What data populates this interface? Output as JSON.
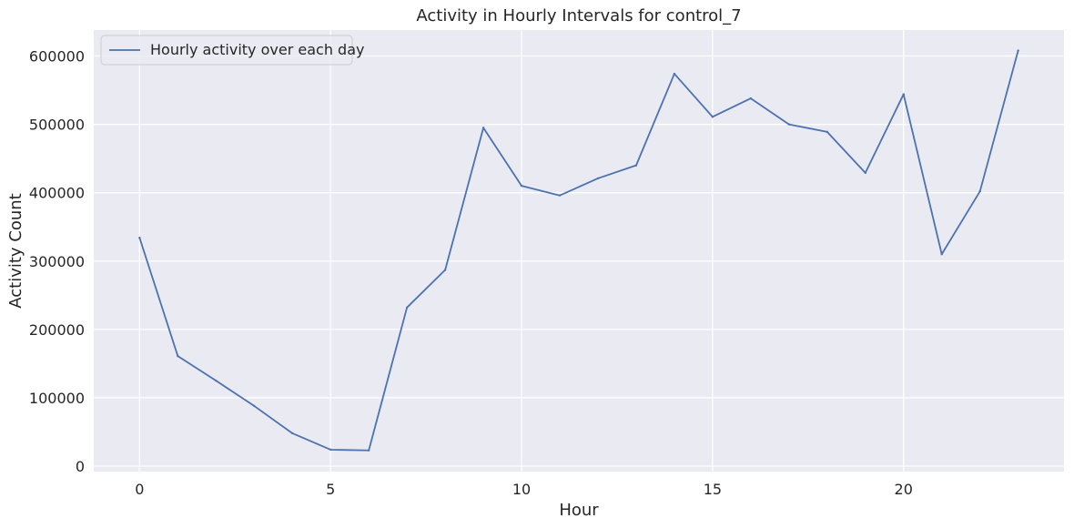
{
  "chart_data": {
    "type": "line",
    "title": "Activity in Hourly Intervals for control_7",
    "xlabel": "Hour",
    "ylabel": "Activity Count",
    "xlim": [
      -1.2,
      24.2
    ],
    "ylim": [
      -8000,
      638000
    ],
    "xticks": [
      0,
      5,
      10,
      15,
      20
    ],
    "yticks": [
      0,
      100000,
      200000,
      300000,
      400000,
      500000,
      600000
    ],
    "grid": true,
    "legend_position": "top-left",
    "series": [
      {
        "name": "Hourly activity over each day",
        "color": "#4c72b0",
        "x": [
          0,
          1,
          2,
          3,
          4,
          5,
          6,
          7,
          8,
          9,
          10,
          11,
          12,
          13,
          14,
          15,
          16,
          17,
          18,
          19,
          20,
          21,
          22,
          23
        ],
        "values": [
          334000,
          161000,
          125000,
          88000,
          48000,
          24000,
          23000,
          232000,
          287000,
          495000,
          410000,
          396000,
          421000,
          440000,
          574000,
          511000,
          538000,
          500000,
          489000,
          429000,
          544000,
          310000,
          402000,
          608000
        ]
      }
    ]
  },
  "colors": {
    "plot_background": "#eaeaf2",
    "grid": "#ffffff",
    "line": "#4c72b0"
  }
}
